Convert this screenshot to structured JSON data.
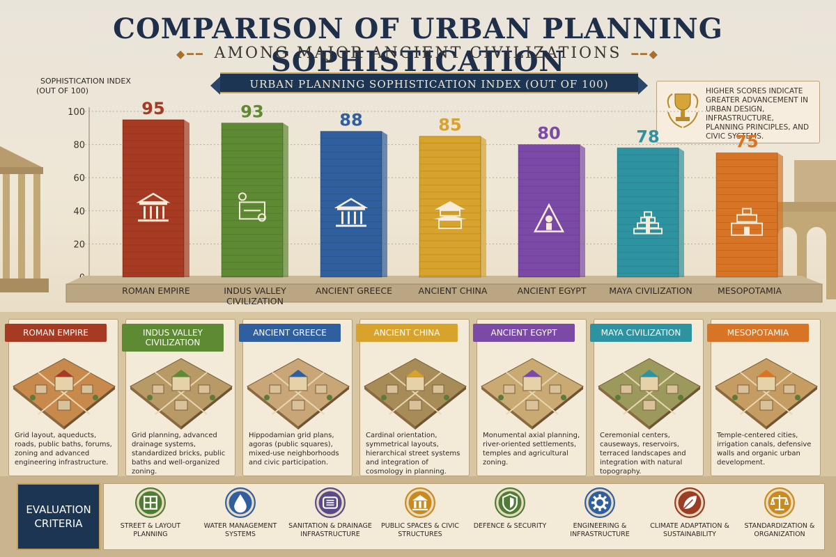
{
  "title": "COMPARISON OF URBAN PLANNING SOPHISTICATION",
  "subtitle": "AMONG MAJOR ANCIENT CIVILIZATIONS",
  "banner": "URBAN PLANNING SOPHISTICATION INDEX (OUT OF 100)",
  "note": "HIGHER SCORES INDICATE GREATER ADVANCEMENT IN URBAN DESIGN, INFRASTRUCTURE, PLANNING PRINCIPLES, AND CIVIC SYSTEMS.",
  "chart_data": {
    "type": "bar",
    "ylabel": "SOPHISTICATION INDEX (OUT OF 100)",
    "ylim": [
      0,
      100
    ],
    "yticks": [
      0,
      20,
      40,
      60,
      80,
      100
    ],
    "grid": true,
    "categories": [
      "ROMAN EMPIRE",
      "INDUS VALLEY CIVILIZATION",
      "ANCIENT GREECE",
      "ANCIENT CHINA",
      "ANCIENT EGYPT",
      "MAYA CIVILIZATION",
      "MESOPOTAMIA"
    ],
    "values": [
      95,
      93,
      88,
      85,
      80,
      78,
      75
    ],
    "colors": [
      "#a63a22",
      "#5e8a33",
      "#2f5f9e",
      "#d7a32c",
      "#7b4aa6",
      "#2e93a0",
      "#d87426"
    ],
    "icons": [
      "temple-icon",
      "blueprint-icon",
      "temple-icon",
      "pagoda-icon",
      "pyramid-icon",
      "step-pyramid-icon",
      "ziggurat-icon"
    ]
  },
  "cards": [
    {
      "name": "ROMAN EMPIRE",
      "color": "#a63a22",
      "desc": "Grid layout, aqueducts, roads, public baths, forums, zoning and advanced engineering infrastructure."
    },
    {
      "name": "INDUS VALLEY CIVILIZATION",
      "color": "#5e8a33",
      "desc": "Grid planning, advanced drainage systems, standardized bricks, public baths and well-organized zoning."
    },
    {
      "name": "ANCIENT GREECE",
      "color": "#2f5f9e",
      "desc": "Hippodamian grid plans, agoras (public squares), mixed-use neighborhoods and civic participation."
    },
    {
      "name": "ANCIENT CHINA",
      "color": "#d7a32c",
      "desc": "Cardinal orientation, symmetrical layouts, hierarchical street systems and integration of cosmology in planning."
    },
    {
      "name": "ANCIENT EGYPT",
      "color": "#7b4aa6",
      "desc": "Monumental axial planning, river-oriented settlements, temples and agricultural zoning."
    },
    {
      "name": "MAYA CIVILIZATION",
      "color": "#2e93a0",
      "desc": "Ceremonial centers, causeways, reservoirs, terraced landscapes and integration with natural topography."
    },
    {
      "name": "MESOPOTAMIA",
      "color": "#d87426",
      "desc": "Temple-centered cities, irrigation canals, defensive walls and organic urban development."
    }
  ],
  "criteria": {
    "heading": "EVALUATION CRITERIA",
    "items": [
      {
        "label": "STREET & LAYOUT PLANNING",
        "icon": "grid-icon",
        "color": "#4f7d34"
      },
      {
        "label": "WATER MANAGEMENT SYSTEMS",
        "icon": "water-drop-icon",
        "color": "#2f5f9e"
      },
      {
        "label": "SANITATION & DRAINAGE INFRASTRUCTURE",
        "icon": "drain-icon",
        "color": "#5a4a8a"
      },
      {
        "label": "PUBLIC SPACES & CIVIC STRUCTURES",
        "icon": "civic-building-icon",
        "color": "#c98a1e"
      },
      {
        "label": "DEFENCE & SECURITY",
        "icon": "shield-icon",
        "color": "#4f7d34"
      },
      {
        "label": "ENGINEERING & INFRASTRUCTURE",
        "icon": "gear-icon",
        "color": "#2f5f9e"
      },
      {
        "label": "CLIMATE ADAPTATION & SUSTAINABILITY",
        "icon": "leaf-icon",
        "color": "#9b3d24"
      },
      {
        "label": "STANDARDIZATION & ORGANIZATION",
        "icon": "scales-icon",
        "color": "#c98a1e"
      }
    ]
  }
}
